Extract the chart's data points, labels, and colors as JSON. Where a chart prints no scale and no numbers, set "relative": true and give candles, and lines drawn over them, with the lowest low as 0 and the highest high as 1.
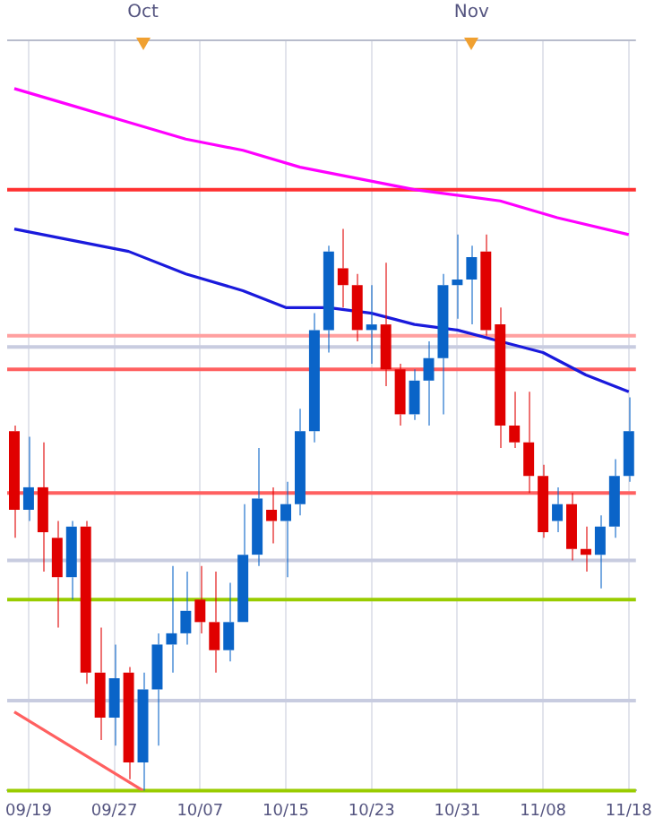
{
  "chart_data": {
    "type": "candlestick",
    "relative": true,
    "categories": [
      null,
      "09/19",
      null,
      null,
      null,
      null,
      null,
      "09/27",
      null,
      null,
      null,
      null,
      null,
      "10/07",
      null,
      null,
      null,
      null,
      null,
      "10/15",
      null,
      null,
      null,
      null,
      null,
      "10/23",
      null,
      null,
      null,
      null,
      null,
      "10/31",
      null,
      null,
      null,
      null,
      null,
      "11/08",
      null,
      null,
      null,
      null,
      null,
      "11/18"
    ],
    "ohlc": [
      [
        0.64,
        0.65,
        0.45,
        0.5
      ],
      [
        0.5,
        0.63,
        0.48,
        0.54
      ],
      [
        0.54,
        0.62,
        0.39,
        0.46
      ],
      [
        0.45,
        0.48,
        0.29,
        0.38
      ],
      [
        0.38,
        0.48,
        0.34,
        0.47
      ],
      [
        0.47,
        0.48,
        0.19,
        0.21
      ],
      [
        0.21,
        0.29,
        0.09,
        0.13
      ],
      [
        0.13,
        0.26,
        0.08,
        0.2
      ],
      [
        0.21,
        0.22,
        0.02,
        0.05
      ],
      [
        0.05,
        0.21,
        0.0,
        0.18
      ],
      [
        0.18,
        0.28,
        0.08,
        0.26
      ],
      [
        0.26,
        0.4,
        0.21,
        0.28
      ],
      [
        0.28,
        0.39,
        0.26,
        0.32
      ],
      [
        0.34,
        0.4,
        0.28,
        0.3
      ],
      [
        0.3,
        0.39,
        0.21,
        0.25
      ],
      [
        0.25,
        0.37,
        0.23,
        0.3
      ],
      [
        0.3,
        0.51,
        0.3,
        0.42
      ],
      [
        0.42,
        0.61,
        0.4,
        0.52
      ],
      [
        0.5,
        0.54,
        0.44,
        0.48
      ],
      [
        0.48,
        0.55,
        0.38,
        0.51
      ],
      [
        0.51,
        0.68,
        0.49,
        0.64
      ],
      [
        0.64,
        0.85,
        0.62,
        0.82
      ],
      [
        0.82,
        0.97,
        0.78,
        0.96
      ],
      [
        0.93,
        1.0,
        0.86,
        0.9
      ],
      [
        0.9,
        0.92,
        0.8,
        0.82
      ],
      [
        0.82,
        0.9,
        0.76,
        0.83
      ],
      [
        0.83,
        0.94,
        0.72,
        0.75
      ],
      [
        0.75,
        0.76,
        0.65,
        0.67
      ],
      [
        0.67,
        0.75,
        0.66,
        0.73
      ],
      [
        0.73,
        0.8,
        0.65,
        0.77
      ],
      [
        0.77,
        0.92,
        0.67,
        0.9
      ],
      [
        0.9,
        0.99,
        0.84,
        0.91
      ],
      [
        0.91,
        0.97,
        0.83,
        0.95
      ],
      [
        0.96,
        0.99,
        0.81,
        0.82
      ],
      [
        0.83,
        0.86,
        0.61,
        0.65
      ],
      [
        0.65,
        0.71,
        0.61,
        0.62
      ],
      [
        0.62,
        0.71,
        0.53,
        0.56
      ],
      [
        0.56,
        0.58,
        0.45,
        0.46
      ],
      [
        0.48,
        0.54,
        0.46,
        0.51
      ],
      [
        0.51,
        0.53,
        0.41,
        0.43
      ],
      [
        0.43,
        0.47,
        0.39,
        0.42
      ],
      [
        0.42,
        0.49,
        0.36,
        0.47
      ],
      [
        0.47,
        0.59,
        0.45,
        0.56
      ],
      [
        0.56,
        0.7,
        0.55,
        0.64
      ]
    ],
    "colors": [
      "#e00000",
      "#0a64c8",
      "#e00000",
      "#e00000",
      "#0a64c8",
      "#e00000",
      "#e00000",
      "#0a64c8",
      "#e00000",
      "#0a64c8",
      "#0a64c8",
      "#0a64c8",
      "#0a64c8",
      "#e00000",
      "#e00000",
      "#0a64c8",
      "#0a64c8",
      "#0a64c8",
      "#e00000",
      "#0a64c8",
      "#0a64c8",
      "#0a64c8",
      "#0a64c8",
      "#e00000",
      "#e00000",
      "#0a64c8",
      "#e00000",
      "#e00000",
      "#0a64c8",
      "#0a64c8",
      "#0a64c8",
      "#0a64c8",
      "#0a64c8",
      "#e00000",
      "#e00000",
      "#e00000",
      "#e00000",
      "#e00000",
      "#0a64c8",
      "#e00000",
      "#e00000",
      "#0a64c8",
      "#0a64c8",
      "#0a64c8"
    ],
    "series": [
      {
        "type": "line",
        "color": "#ff00ff",
        "values": [
          1.25,
          null,
          null,
          null,
          1.22,
          null,
          null,
          null,
          1.19,
          null,
          null,
          null,
          1.16,
          null,
          null,
          null,
          1.14,
          null,
          null,
          null,
          1.11,
          null,
          null,
          null,
          1.09,
          null,
          null,
          null,
          1.07,
          null,
          null,
          1.06,
          null,
          null,
          1.05,
          null,
          null,
          null,
          1.02,
          null,
          null,
          null,
          null,
          0.99
        ]
      },
      {
        "type": "line",
        "color": "#1a1adc",
        "values": [
          1.0,
          null,
          null,
          null,
          0.98,
          null,
          null,
          null,
          0.96,
          null,
          null,
          null,
          0.92,
          null,
          null,
          null,
          0.89,
          null,
          null,
          0.86,
          null,
          null,
          0.86,
          null,
          null,
          0.85,
          null,
          null,
          0.83,
          null,
          null,
          0.82,
          null,
          null,
          0.8,
          null,
          null,
          0.78,
          null,
          null,
          0.74,
          null,
          null,
          0.71
        ]
      },
      {
        "type": "line",
        "color": "#ff6060",
        "values": [
          0.14,
          null,
          null,
          null,
          null,
          null,
          null,
          null,
          null,
          0.0,
          null,
          null,
          null,
          null,
          null,
          null,
          null,
          null,
          null,
          null,
          null,
          null,
          null,
          null,
          null,
          null,
          null,
          null,
          null,
          null,
          null,
          null,
          null,
          null,
          null,
          null,
          null,
          null,
          null,
          null,
          null,
          null,
          null,
          null
        ]
      }
    ],
    "ref_lines": [
      {
        "axis": "y",
        "value": 1.07,
        "color": "#ff3030"
      },
      {
        "axis": "y",
        "value": 0.81,
        "color": "#ffa0a0"
      },
      {
        "axis": "y",
        "value": 0.79,
        "color": "#c8cce0"
      },
      {
        "axis": "y",
        "value": 0.75,
        "color": "#ff6060"
      },
      {
        "axis": "y",
        "value": 0.53,
        "color": "#ff6060"
      },
      {
        "axis": "y",
        "value": 0.41,
        "color": "#c8cce0"
      },
      {
        "axis": "y",
        "value": 0.34,
        "color": "#99cc00"
      },
      {
        "axis": "y",
        "value": 0.16,
        "color": "#c8cce0"
      },
      {
        "axis": "y",
        "value": 0.0,
        "color": "#99cc00"
      }
    ],
    "grid": "x",
    "legend": false,
    "annotations": [
      "Oct",
      "Nov"
    ]
  }
}
